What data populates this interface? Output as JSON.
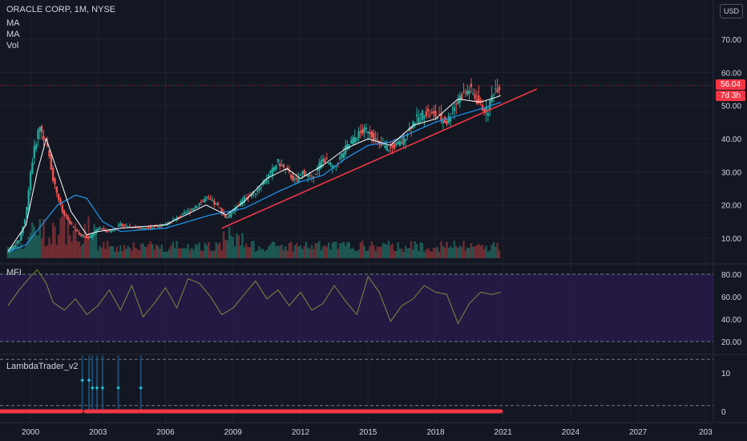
{
  "header": {
    "title": "ORACLE CORP, 1M, NYSE",
    "indicators": [
      "MA",
      "MA",
      "Vol"
    ],
    "currency": "USD"
  },
  "price_tags": {
    "last_price": "56.04",
    "countdown": "7d 3h",
    "color": "#f23645"
  },
  "chart_data": [
    {
      "type": "line",
      "title": "ORACLE CORP, 1M, NYSE",
      "note": "Monthly candlestick price chart with two moving averages, volume bars and a drawn trendline",
      "x_ticks": [
        "2000",
        "2003",
        "2006",
        "2009",
        "2012",
        "2015",
        "2018",
        "2021",
        "2024",
        "2027",
        "203"
      ],
      "y_ticks": [
        10,
        20,
        30,
        40,
        50,
        60,
        70
      ],
      "ylim": [
        6,
        80
      ],
      "xlim": [
        1999.0,
        2030.7
      ],
      "last_price": 56.04,
      "colors": {
        "up": "#26a69a",
        "down": "#ef5350",
        "ma_fast": "#ffffff",
        "ma_slow": "#2196f3",
        "trendline": "#f23645"
      },
      "series": [
        {
          "role": "price",
          "x": [
            1999.0,
            1999.5,
            1999.8,
            2000.0,
            2000.2,
            2000.4,
            2000.6,
            2000.8,
            2001.0,
            2001.4,
            2001.8,
            2002.2,
            2002.6,
            2003.0,
            2003.5,
            2004.0,
            2005.0,
            2006.0,
            2007.0,
            2007.8,
            2008.3,
            2008.7,
            2009.0,
            2009.5,
            2010.0,
            2010.5,
            2011.0,
            2011.4,
            2011.8,
            2012.1,
            2012.5,
            2013.0,
            2013.5,
            2014.0,
            2014.5,
            2015.0,
            2015.5,
            2016.0,
            2016.5,
            2017.0,
            2017.5,
            2018.0,
            2018.5,
            2019.0,
            2019.5,
            2020.0,
            2020.3,
            2020.6,
            2020.9
          ],
          "values": [
            5.8,
            9.5,
            17,
            30,
            38,
            44,
            40,
            36,
            28,
            18,
            14,
            11,
            10,
            13,
            12,
            14,
            13,
            14,
            18,
            22,
            20,
            16,
            18,
            22,
            24,
            28,
            33,
            30,
            27,
            30,
            28,
            34,
            31,
            37,
            41,
            43,
            38,
            37,
            39,
            45,
            48,
            47,
            45,
            52,
            55,
            50,
            48,
            55,
            56.04
          ]
        },
        {
          "role": "ma_fast",
          "x": [
            1999.0,
            1999.8,
            2000.3,
            2000.7,
            2001.2,
            2001.8,
            2002.5,
            2003.0,
            2004.0,
            2006.0,
            2007.8,
            2008.7,
            2009.5,
            2010.5,
            2011.4,
            2012.0,
            2013.0,
            2014.0,
            2015.0,
            2016.0,
            2017.0,
            2018.0,
            2019.0,
            2020.0,
            2020.9
          ],
          "values": [
            6,
            14,
            30,
            40,
            30,
            18,
            11,
            12,
            13,
            14,
            20,
            17,
            21,
            28,
            31,
            28,
            32,
            37,
            40,
            38,
            44,
            46,
            52,
            51,
            53
          ]
        },
        {
          "role": "ma_slow",
          "x": [
            1999.0,
            1999.8,
            2000.5,
            2001.2,
            2002.0,
            2002.5,
            2003.2,
            2004.0,
            2006.0,
            2008.0,
            2009.5,
            2011.0,
            2012.0,
            2013.0,
            2014.0,
            2015.0,
            2016.0,
            2017.0,
            2018.0,
            2019.0,
            2020.0,
            2020.9
          ],
          "values": [
            6,
            8,
            14,
            20,
            23,
            22,
            15,
            12,
            13,
            17,
            19,
            24,
            27,
            29,
            34,
            38,
            39,
            42,
            45,
            47,
            49,
            51
          ]
        },
        {
          "role": "trendline",
          "x": [
            2008.5,
            2022.5
          ],
          "values": [
            13,
            55
          ]
        }
      ]
    },
    {
      "type": "line",
      "title": "MFI",
      "ylim": [
        15,
        88
      ],
      "y_ticks": [
        20,
        40,
        60,
        80
      ],
      "bands": [
        20,
        80
      ],
      "band_fill": "#311b5e",
      "line_color": "#7e8b3a",
      "series": [
        {
          "name": "MFI",
          "x": [
            1999.0,
            1999.5,
            2000.0,
            2000.3,
            2000.7,
            2001.0,
            2001.5,
            2002.0,
            2002.5,
            2003.0,
            2003.5,
            2004.0,
            2004.5,
            2005.0,
            2005.5,
            2006.0,
            2006.5,
            2007.0,
            2007.5,
            2008.0,
            2008.5,
            2009.0,
            2009.5,
            2010.0,
            2010.5,
            2011.0,
            2011.5,
            2012.0,
            2012.5,
            2013.0,
            2013.5,
            2014.0,
            2014.5,
            2015.0,
            2015.5,
            2016.0,
            2016.5,
            2017.0,
            2017.5,
            2018.0,
            2018.5,
            2019.0,
            2019.5,
            2020.0,
            2020.5,
            2020.9
          ],
          "values": [
            52,
            66,
            78,
            84,
            72,
            55,
            48,
            58,
            44,
            52,
            66,
            48,
            70,
            42,
            54,
            68,
            50,
            76,
            72,
            60,
            44,
            50,
            62,
            74,
            58,
            66,
            52,
            64,
            48,
            54,
            70,
            56,
            44,
            78,
            64,
            38,
            52,
            58,
            70,
            64,
            62,
            36,
            54,
            64,
            62,
            64
          ]
        }
      ]
    },
    {
      "type": "scatter",
      "title": "LambdaTrader_v2",
      "ylim": [
        -1.5,
        15.5
      ],
      "y_ticks": [
        0,
        10
      ],
      "marker_color": "#26c6da",
      "markers": [
        {
          "x": 2002.3,
          "y": 8
        },
        {
          "x": 2002.6,
          "y": 8
        },
        {
          "x": 2002.75,
          "y": 6
        },
        {
          "x": 2002.95,
          "y": 6
        },
        {
          "x": 2003.2,
          "y": 6
        },
        {
          "x": 2003.9,
          "y": 6
        },
        {
          "x": 2004.9,
          "y": 6
        }
      ],
      "baseline_color": "#f23645",
      "baseline_range": [
        1999.0,
        2020.9
      ]
    }
  ]
}
